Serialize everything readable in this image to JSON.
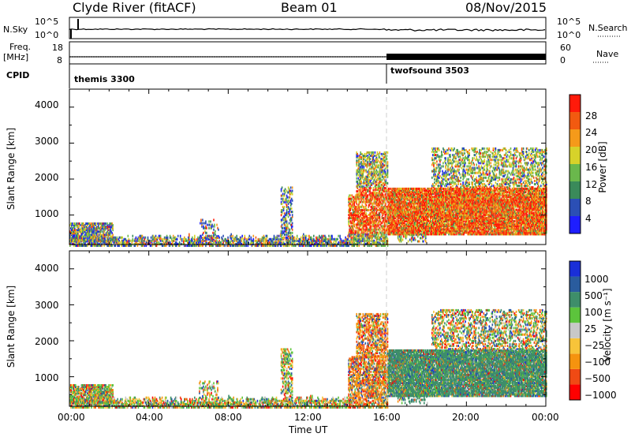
{
  "header": {
    "station": "Clyde River (fitACF)",
    "beam": "Beam 01",
    "date": "08/Nov/2015"
  },
  "top_panel": {
    "left_label": "N.Sky",
    "right_label": "N.Search",
    "left_ticks": [
      "10^5",
      "10^0"
    ],
    "right_ticks": [
      "10^5",
      "10^0"
    ]
  },
  "freq_panel": {
    "left_label_1": "Freq.",
    "left_label_2": "[MHz]",
    "right_label": "Nave",
    "left_ticks": [
      "18",
      "8"
    ],
    "right_ticks": [
      "60",
      "0"
    ]
  },
  "cpid": {
    "label": "CPID",
    "programs": [
      {
        "name": "themis 3300",
        "start": "00:00"
      },
      {
        "name": "twofsound 3503",
        "start": "16:00"
      }
    ]
  },
  "chart_data": [
    {
      "type": "heatmap",
      "panel": "power",
      "ylabel": "Slant Range [km]",
      "xlabel": "",
      "yticks": [
        "1000",
        "2000",
        "3000",
        "4000"
      ],
      "colorbar_label": "Power [dB]",
      "colorbar_ticks": [
        "4",
        "8",
        "12",
        "16",
        "20",
        "24",
        "28"
      ],
      "colorbar_colors": [
        "#1e1eff",
        "#2b4fb5",
        "#3a8a5a",
        "#6ab84c",
        "#d7d22a",
        "#f59a1a",
        "#f25a10",
        "#ff1a0a"
      ],
      "xlim": [
        0,
        24
      ],
      "ylim": [
        180,
        4500
      ]
    },
    {
      "type": "heatmap",
      "panel": "velocity",
      "ylabel": "Slant Range [km]",
      "xlabel": "Time UT",
      "yticks": [
        "1000",
        "2000",
        "3000",
        "4000"
      ],
      "xticks": [
        "00:00",
        "04:00",
        "08:00",
        "12:00",
        "16:00",
        "20:00",
        "00:00"
      ],
      "colorbar_label": "Velocity [m s⁻¹]",
      "colorbar_ticks": [
        "1000",
        "500",
        "100",
        "25",
        "−25",
        "−100",
        "−500",
        "−1000"
      ],
      "colorbar_colors": [
        "#1a2fd8",
        "#2a5c9e",
        "#3e8e6a",
        "#5cc43c",
        "#c8c8c8",
        "#f7c43a",
        "#f5930f",
        "#f04a14",
        "#ff0000"
      ],
      "xlim": [
        0,
        24
      ],
      "ylim": [
        180,
        4500
      ]
    }
  ]
}
